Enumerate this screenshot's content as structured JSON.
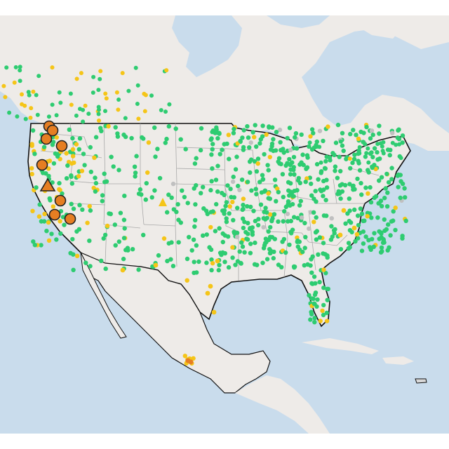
{
  "map": {
    "colors": {
      "ocean": "#c9dcec",
      "land": "#eeebe8",
      "land_alt": "#e6e2de",
      "state_border": "#a9a9a9",
      "country_border": "#111111",
      "good": "#2ecc71",
      "moderate": "#f5c518",
      "usg": "#f39c35",
      "unhealthy": "#e67e22",
      "no_data": "#c0c0c0",
      "marker_outline": "#222222"
    },
    "categories": [
      "good",
      "moderate",
      "unhealthy-for-sensitive-groups",
      "unhealthy",
      "no-data"
    ],
    "large_markers": {
      "circles": 9,
      "triangles": 1,
      "fill": "#e67e22"
    }
  }
}
